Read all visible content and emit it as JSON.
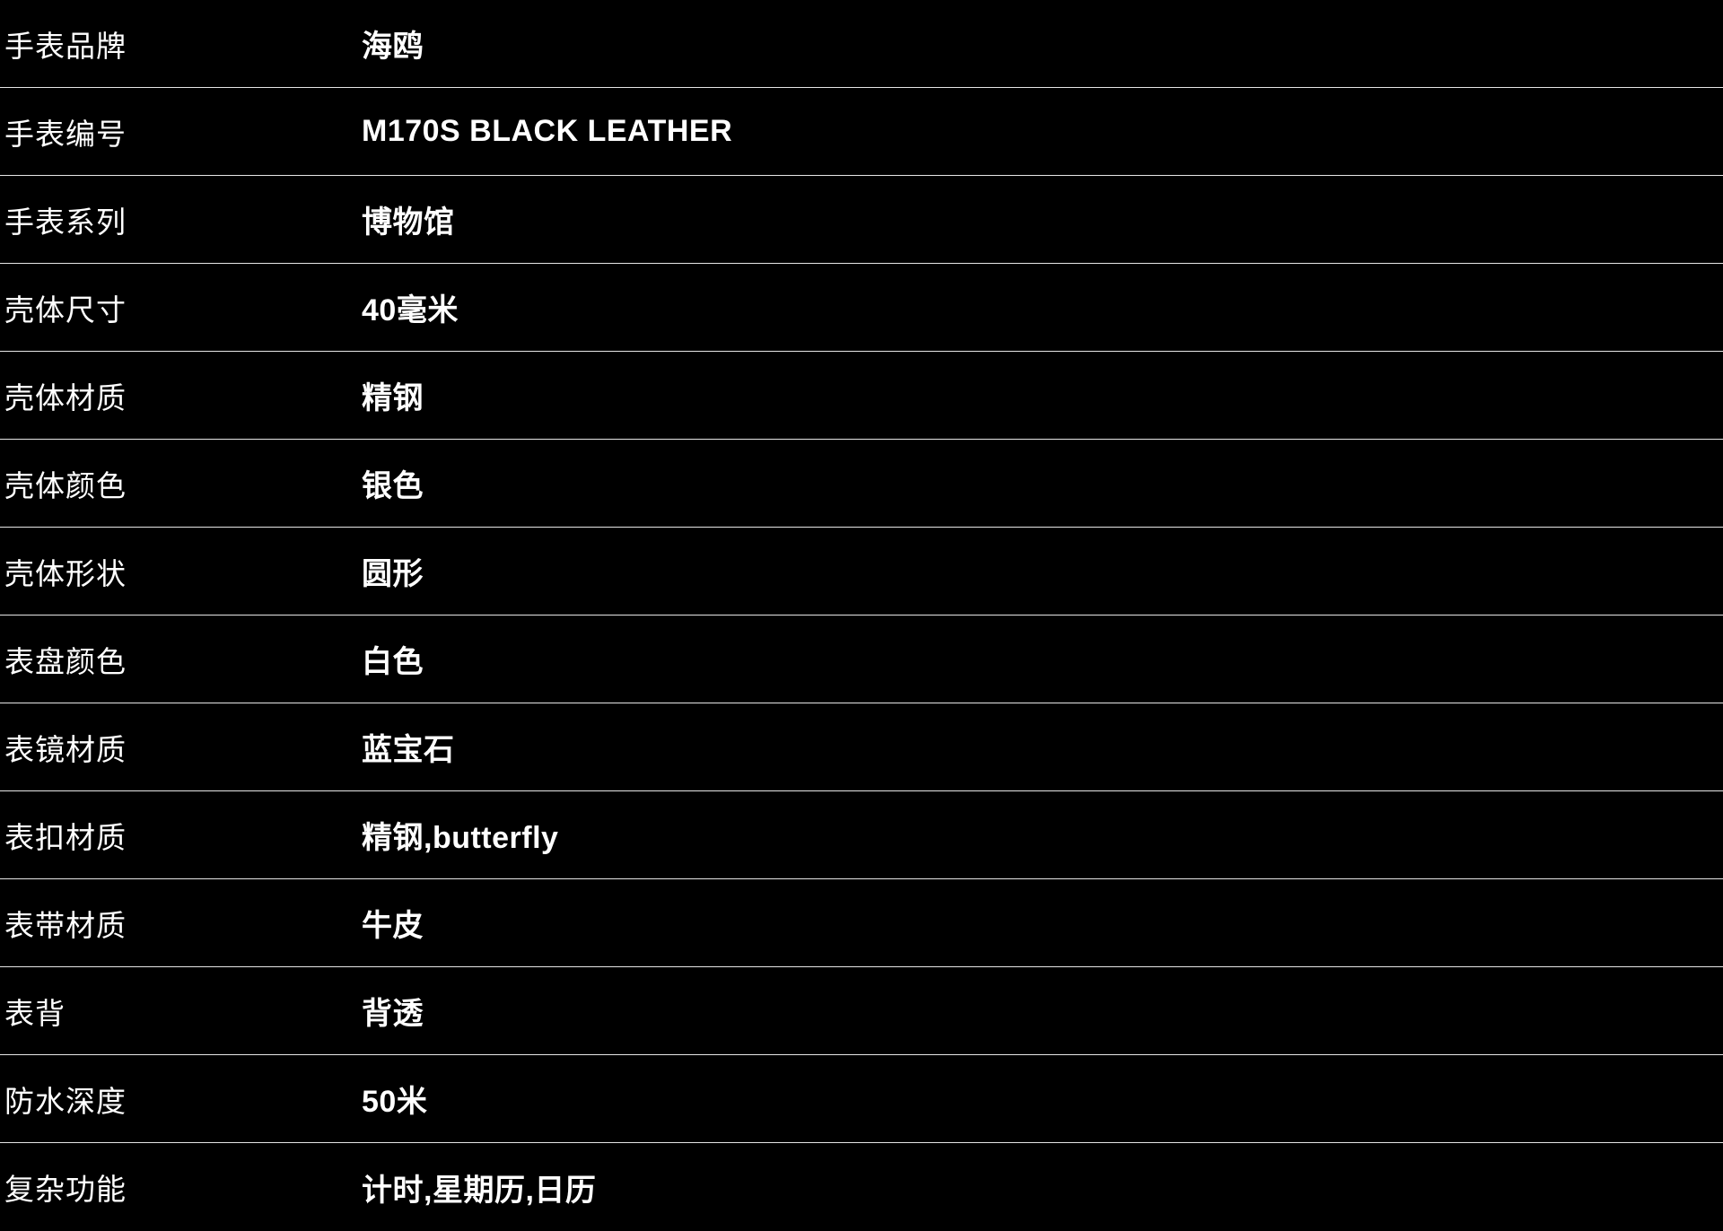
{
  "colors": {
    "background": "#000000",
    "text": "#ffffff",
    "divider": "#ffffff"
  },
  "spec_table": {
    "rows": [
      {
        "label": "手表品牌",
        "value": "海鸥"
      },
      {
        "label": "手表编号",
        "value": "M170S BLACK LEATHER"
      },
      {
        "label": "手表系列",
        "value": "博物馆"
      },
      {
        "label": "壳体尺寸",
        "value": "40毫米"
      },
      {
        "label": "壳体材质",
        "value": "精钢"
      },
      {
        "label": "壳体颜色",
        "value": "银色"
      },
      {
        "label": "壳体形状",
        "value": "圆形"
      },
      {
        "label": "表盘颜色",
        "value": "白色"
      },
      {
        "label": "表镜材质",
        "value": "蓝宝石"
      },
      {
        "label": "表扣材质",
        "value": "精钢,butterfly"
      },
      {
        "label": "表带材质",
        "value": "牛皮"
      },
      {
        "label": "表背",
        "value": "背透"
      },
      {
        "label": "防水深度",
        "value": "50米"
      },
      {
        "label": "复杂功能",
        "value": "计时,星期历,日历"
      }
    ]
  }
}
